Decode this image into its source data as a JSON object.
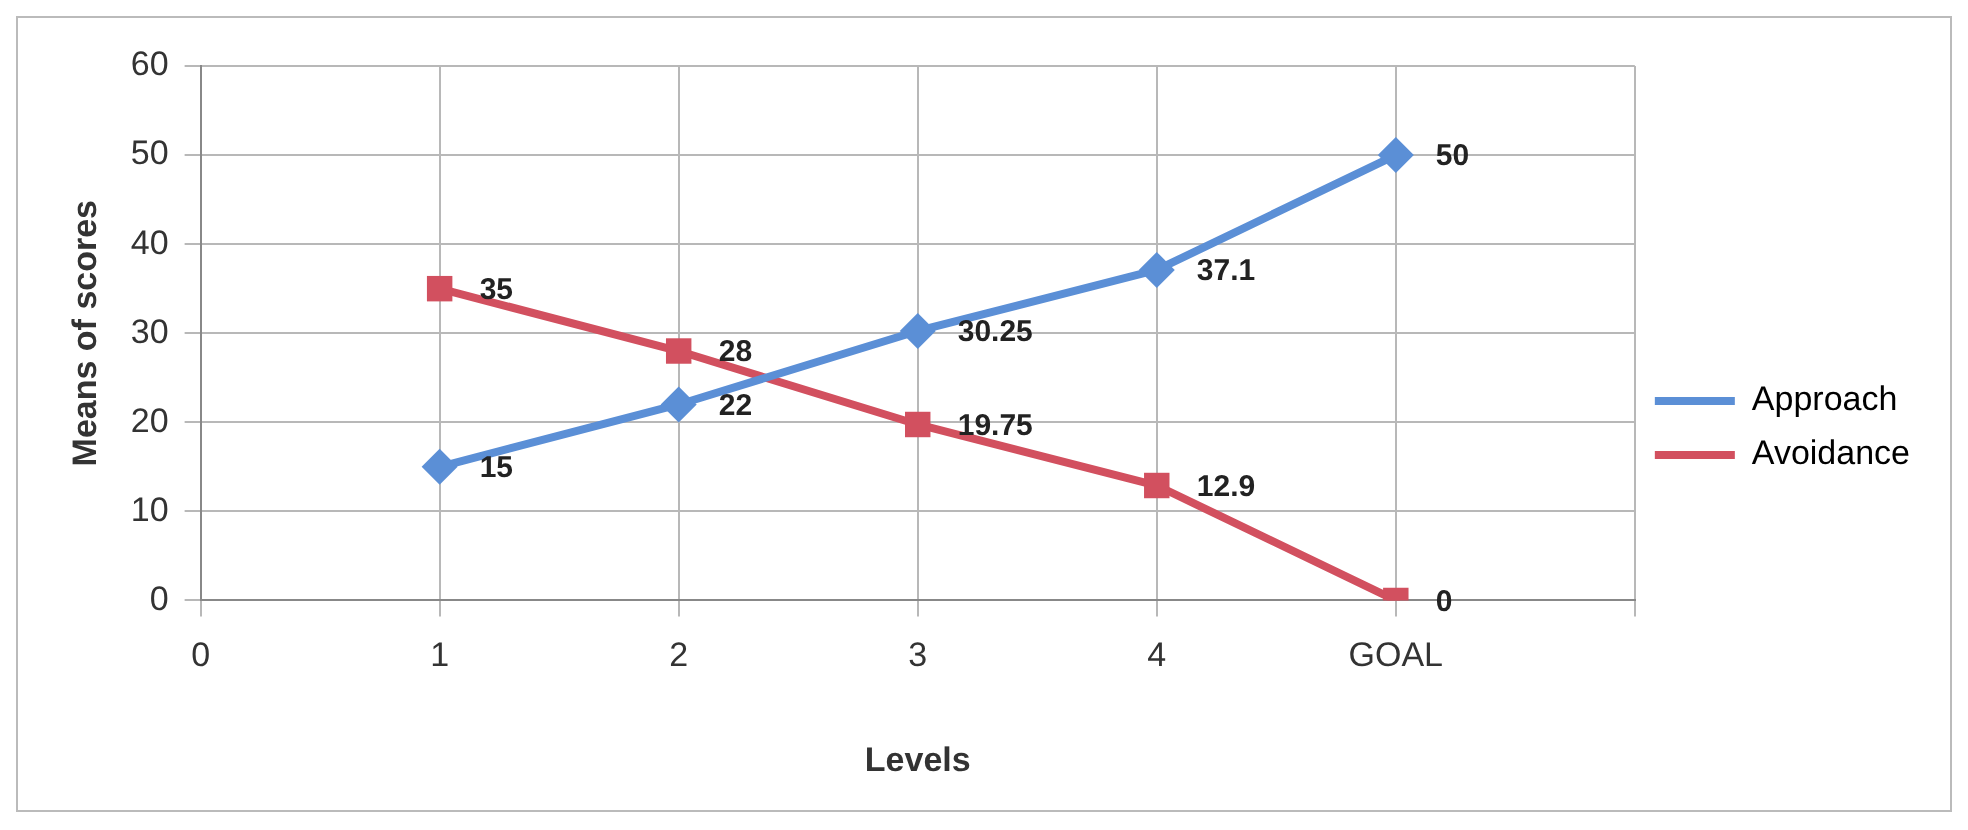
{
  "chart_data": {
    "type": "line",
    "xlabel": "Levels",
    "ylabel": "Means of scores",
    "categories": [
      "0",
      "1",
      "2",
      "3",
      "4",
      "GOAL",
      null
    ],
    "series": [
      {
        "name": "Approach",
        "color": "#5b8fd6",
        "marker": "diamond",
        "values": [
          null,
          15,
          22,
          30.25,
          37.1,
          50,
          null
        ]
      },
      {
        "name": "Avoidance",
        "color": "#d2505f",
        "marker": "square",
        "values": [
          null,
          35,
          28,
          19.75,
          12.9,
          0,
          null
        ]
      }
    ],
    "ylim": [
      0,
      60
    ],
    "yticks": [
      0,
      10,
      20,
      30,
      40,
      50,
      60
    ],
    "grid": true,
    "legend": "right",
    "data_labels": true
  }
}
